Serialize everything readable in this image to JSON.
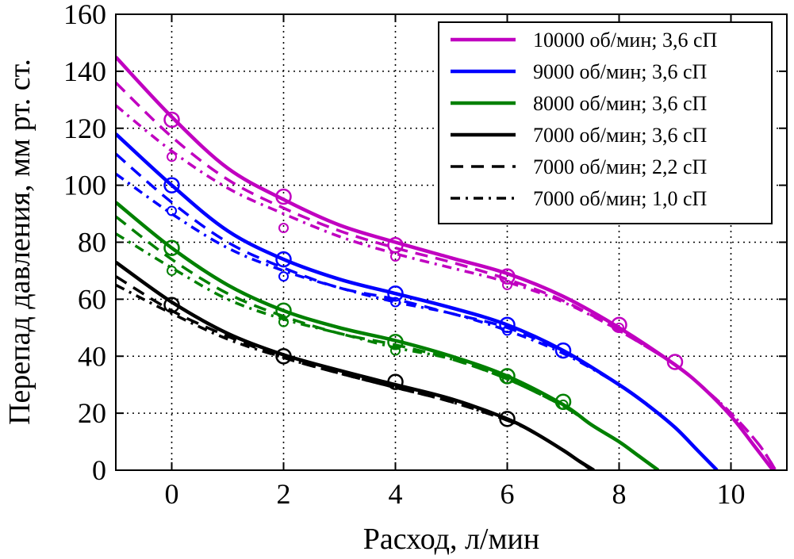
{
  "chart_data": {
    "type": "line",
    "xlabel": "Расход, л/мин",
    "ylabel": "Перепад давления, мм рт. ст.",
    "xlim": [
      -1,
      11
    ],
    "ylim": [
      0,
      160
    ],
    "xticks": [
      0,
      2,
      4,
      6,
      8,
      10
    ],
    "yticks": [
      0,
      20,
      40,
      60,
      80,
      100,
      120,
      140,
      160
    ],
    "xtick_labels": [
      "0",
      "2",
      "4",
      "6",
      "8",
      "10"
    ],
    "ytick_labels": [
      "0",
      "20",
      "40",
      "60",
      "80",
      "100",
      "120",
      "140",
      "160"
    ],
    "grid": true,
    "legend_position": "top-right",
    "legend": [
      "10000 об/мин; 3,6 сП",
      "9000 об/мин; 3,6 сП",
      "8000 об/мин; 3,6 сП",
      "7000 об/мин; 3,6 сП",
      "7000 об/мин; 2,2 сП",
      "7000 об/мин; 1,0 сП"
    ],
    "colors": {
      "10000": "#c000c0",
      "9000": "#0000ff",
      "8000": "#008000",
      "7000": "#000000"
    },
    "series": [
      {
        "name": "10000 об/мин; 3,6 сП",
        "color": "#c000c0",
        "style": "solid",
        "x": [
          -1,
          0,
          1,
          2,
          3,
          4,
          5,
          6,
          7,
          8,
          9,
          9.5,
          10,
          10.4,
          10.75
        ],
        "y": [
          145,
          124,
          106,
          95,
          86,
          80,
          74.5,
          69,
          61,
          50,
          37,
          29,
          19,
          9,
          0
        ]
      },
      {
        "name": "10000 об/мин; 2,2 сП",
        "color": "#c000c0",
        "style": "dashed",
        "x": [
          -1,
          0,
          1,
          2,
          3,
          4,
          5,
          6,
          7,
          8,
          9,
          9.5,
          10,
          10.5,
          10.8
        ],
        "y": [
          136,
          117,
          102,
          92,
          84,
          78,
          73,
          67,
          59.5,
          49,
          37,
          29,
          20,
          9,
          0
        ]
      },
      {
        "name": "10000 об/мин; 1,0 сП",
        "color": "#c000c0",
        "style": "dashdot",
        "x": [
          -1,
          0,
          1,
          2,
          3,
          4,
          5,
          6,
          7,
          8,
          9,
          9.5,
          10,
          10.5,
          10.8
        ],
        "y": [
          128,
          112,
          99,
          90,
          82,
          76,
          71,
          66,
          59,
          49,
          37,
          29,
          20,
          9,
          0
        ]
      },
      {
        "name": "9000 об/мин; 3,6 сП",
        "color": "#0000ff",
        "style": "solid",
        "x": [
          -1,
          0,
          1,
          2,
          3,
          4,
          5,
          6,
          7,
          8,
          8.5,
          9,
          9.4,
          9.75
        ],
        "y": [
          118,
          100,
          84,
          74,
          67,
          62,
          57,
          51,
          42,
          30,
          23,
          15,
          7,
          0
        ]
      },
      {
        "name": "9000 об/мин; 2,2 сП",
        "color": "#0000ff",
        "style": "dashed",
        "x": [
          -1,
          0,
          1,
          2,
          3,
          4,
          5,
          6,
          7,
          8,
          8.5,
          9,
          9.4,
          9.75
        ],
        "y": [
          111,
          94,
          80,
          71,
          64,
          60,
          55,
          50,
          41.5,
          30,
          23,
          15,
          7,
          0
        ]
      },
      {
        "name": "9000 об/мин; 1,0 сП",
        "color": "#0000ff",
        "style": "dashdot",
        "x": [
          -1,
          0,
          1,
          2,
          3,
          4,
          5,
          6,
          7,
          8,
          8.5,
          9,
          9.4,
          9.75
        ],
        "y": [
          104,
          90,
          78,
          70,
          64,
          59,
          55,
          49,
          41,
          30,
          23,
          15,
          7,
          0
        ]
      },
      {
        "name": "8000 об/мин; 3,6 сП",
        "color": "#008000",
        "style": "solid",
        "x": [
          -1,
          0,
          1,
          2,
          3,
          4,
          5,
          6,
          7,
          7.5,
          8,
          8.35,
          8.7
        ],
        "y": [
          94,
          78,
          65,
          56,
          50,
          45.5,
          40,
          33,
          23,
          16,
          10,
          5,
          0
        ]
      },
      {
        "name": "8000 об/мин; 2,2 сП",
        "color": "#008000",
        "style": "dashed",
        "x": [
          -1,
          0,
          1,
          2,
          3,
          4,
          5,
          6,
          7,
          7.5,
          8,
          8.35,
          8.7
        ],
        "y": [
          89,
          74,
          62,
          54,
          48,
          44,
          39,
          32,
          22.5,
          16,
          10,
          5,
          0
        ]
      },
      {
        "name": "8000 об/мин; 1,0 сП",
        "color": "#008000",
        "style": "dashdot",
        "x": [
          -1,
          0,
          1,
          2,
          3,
          4,
          5,
          6,
          7,
          7.5,
          8,
          8.35,
          8.7
        ],
        "y": [
          83,
          71,
          60,
          53,
          48,
          43,
          39,
          32,
          22.5,
          16,
          10,
          5,
          0
        ]
      },
      {
        "name": "7000 об/мин; 3,6 сП",
        "color": "#000000",
        "style": "solid",
        "x": [
          -1,
          0,
          1,
          2,
          3,
          4,
          5,
          6,
          6.5,
          7,
          7.3,
          7.55
        ],
        "y": [
          73,
          59,
          48,
          40.5,
          35,
          30,
          25,
          18,
          13,
          7,
          3,
          0
        ]
      },
      {
        "name": "7000 об/мин; 2,2 сП",
        "color": "#000000",
        "style": "dashed",
        "x": [
          -1,
          0,
          1,
          2,
          3,
          4,
          5,
          6,
          6.5,
          7,
          7.3,
          7.5
        ],
        "y": [
          68,
          56,
          47,
          39.5,
          34,
          29,
          24,
          17.5,
          13,
          7,
          3,
          0
        ]
      },
      {
        "name": "7000 об/мин; 1,0 сП",
        "color": "#000000",
        "style": "dashdot",
        "x": [
          -1,
          0,
          1,
          2,
          3,
          4,
          5,
          6,
          6.5,
          7,
          7.3,
          7.5
        ],
        "y": [
          65,
          55,
          46,
          39.5,
          34,
          29,
          24,
          17.5,
          13,
          7,
          3,
          0
        ]
      }
    ],
    "markers": [
      {
        "color": "#c000c0",
        "size": "large",
        "points": [
          [
            0,
            123
          ],
          [
            2,
            96
          ],
          [
            4,
            79
          ],
          [
            6,
            68
          ],
          [
            8,
            51
          ],
          [
            9,
            38
          ]
        ]
      },
      {
        "color": "#c000c0",
        "size": "small",
        "points": [
          [
            0,
            110
          ],
          [
            2,
            85
          ],
          [
            4,
            75
          ],
          [
            6,
            65
          ],
          [
            8,
            50
          ]
        ]
      },
      {
        "color": "#0000ff",
        "size": "large",
        "points": [
          [
            0,
            100
          ],
          [
            2,
            74
          ],
          [
            4,
            62
          ],
          [
            6,
            51
          ],
          [
            7,
            42
          ]
        ]
      },
      {
        "color": "#0000ff",
        "size": "small",
        "points": [
          [
            0,
            91
          ],
          [
            2,
            68
          ],
          [
            4,
            59
          ],
          [
            6,
            49
          ]
        ]
      },
      {
        "color": "#008000",
        "size": "large",
        "points": [
          [
            0,
            78
          ],
          [
            2,
            56
          ],
          [
            4,
            45
          ],
          [
            6,
            33
          ],
          [
            7,
            24
          ]
        ]
      },
      {
        "color": "#008000",
        "size": "small",
        "points": [
          [
            0,
            70
          ],
          [
            2,
            52
          ],
          [
            4,
            42
          ],
          [
            6,
            32
          ],
          [
            7,
            23
          ]
        ]
      },
      {
        "color": "#000000",
        "size": "large",
        "points": [
          [
            0,
            58
          ],
          [
            2,
            40
          ],
          [
            4,
            31
          ],
          [
            6,
            18
          ]
        ]
      }
    ]
  }
}
